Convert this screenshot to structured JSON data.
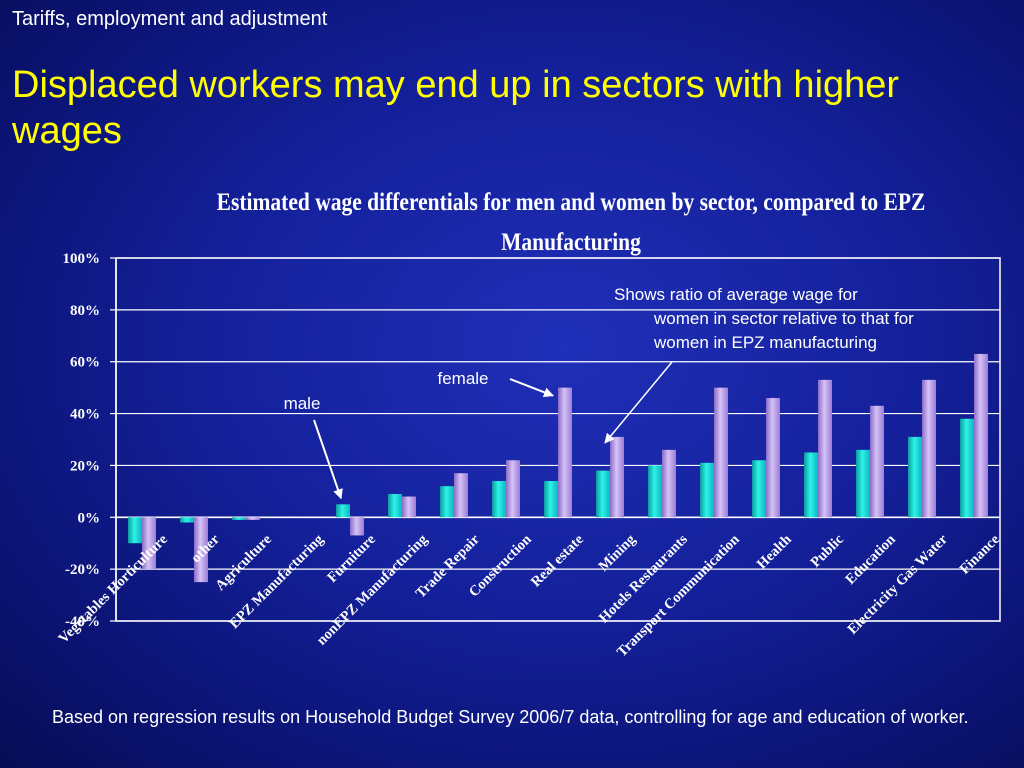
{
  "slide": {
    "subtitle": "Tariffs, employment and adjustment",
    "headline": "Displaced workers may end up in sectors with higher wages",
    "footer": "Based on regression results on Household Budget Survey 2006/7 data, controlling for age and education of worker."
  },
  "colors": {
    "male": "#11e0d8",
    "female": "#b89ae6",
    "headline": "#ffff00",
    "text": "#ffffff"
  },
  "chart_data": {
    "type": "bar",
    "title": "Estimated wage differentials for men and women by sector, compared to EPZ Manufacturing",
    "xlabel": "",
    "ylabel": "",
    "ylim": [
      -40,
      100
    ],
    "yticks": [
      -40,
      -20,
      0,
      20,
      40,
      60,
      80,
      100
    ],
    "ytick_labels": [
      "-40%",
      "-20%",
      "0%",
      "20%",
      "40%",
      "60%",
      "80%",
      "100%"
    ],
    "grid": true,
    "legend": "none",
    "categories": [
      "Vegetables Horticulture",
      "other",
      "Agriculture",
      "EPZ Manufacturing",
      "Furniture",
      "nonEPZ Manufacturing",
      "Trade Repair",
      "Construction",
      "Real estate",
      "Mining",
      "Hotels Restaurants",
      "Transport Communication",
      "Health",
      "Public",
      "Education",
      "Electricity Gas Water",
      "Finance"
    ],
    "series": [
      {
        "name": "male",
        "values": [
          -10,
          -2,
          -1,
          0,
          5,
          9,
          12,
          14,
          14,
          18,
          20,
          21,
          22,
          25,
          26,
          31,
          38
        ]
      },
      {
        "name": "female",
        "values": [
          -20,
          -25,
          -1,
          0,
          -7,
          8,
          17,
          22,
          50,
          31,
          26,
          50,
          46,
          53,
          43,
          53,
          63
        ]
      }
    ],
    "annotations": [
      {
        "text": "male",
        "target_series": "male",
        "target_category": "Furniture"
      },
      {
        "text": "female",
        "target_series": "female",
        "target_category": "Real estate"
      },
      {
        "lines": [
          "Shows ratio of average wage for",
          "women in sector relative to that for",
          "women in EPZ manufacturing"
        ],
        "target_series": "female",
        "target_category": "Mining"
      }
    ]
  }
}
